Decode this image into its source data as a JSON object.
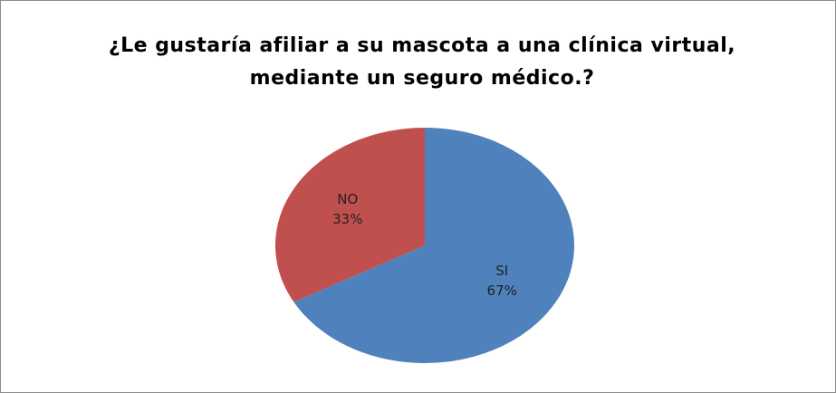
{
  "chart_data": {
    "type": "pie",
    "title": "¿Le gustaría afiliar a su mascota a una clínica virtual, mediante un seguro médico.?",
    "categories": [
      "SI",
      "NO"
    ],
    "values": [
      67,
      33
    ],
    "value_labels": [
      "67%",
      "33%"
    ],
    "colors": [
      "#4f81bd",
      "#c0504d"
    ]
  }
}
